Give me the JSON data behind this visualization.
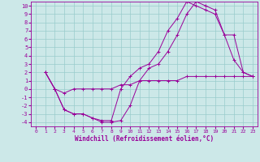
{
  "xlabel": "Windchill (Refroidissement éolien,°C)",
  "bg_color": "#cce8e8",
  "line_color": "#990099",
  "grid_color": "#99cccc",
  "xlim": [
    -0.5,
    23.5
  ],
  "ylim": [
    -4.5,
    10.5
  ],
  "xticks": [
    0,
    1,
    2,
    3,
    4,
    5,
    6,
    7,
    8,
    9,
    10,
    11,
    12,
    13,
    14,
    15,
    16,
    17,
    18,
    19,
    20,
    21,
    22,
    23
  ],
  "yticks": [
    -4,
    -3,
    -2,
    -1,
    0,
    1,
    2,
    3,
    4,
    5,
    6,
    7,
    8,
    9,
    10
  ],
  "curve1_x": [
    1,
    2,
    3,
    4,
    5,
    6,
    7,
    8,
    9,
    10,
    11,
    12,
    13,
    14,
    15,
    16,
    17,
    18,
    19,
    20,
    21,
    22,
    23
  ],
  "curve1_y": [
    2,
    0,
    -2.5,
    -3,
    -3,
    -3.5,
    -4,
    -4,
    -3.8,
    -2,
    1,
    2.5,
    3,
    4.5,
    6.5,
    9,
    10.5,
    10,
    9.5,
    6.5,
    3.5,
    2,
    1.5
  ],
  "curve2_x": [
    1,
    2,
    3,
    4,
    5,
    6,
    7,
    8,
    9,
    10,
    11,
    12,
    13,
    14,
    15,
    16,
    17,
    18,
    19,
    20,
    21,
    22,
    23
  ],
  "curve2_y": [
    2,
    0,
    -2.5,
    -3,
    -3,
    -3.5,
    -3.8,
    -3.8,
    0,
    1.5,
    2.5,
    3,
    4.5,
    7,
    8.5,
    10.5,
    10,
    9.5,
    9,
    6.5,
    6.5,
    2,
    1.5
  ],
  "curve3_x": [
    1,
    2,
    3,
    4,
    5,
    6,
    7,
    8,
    9,
    10,
    11,
    12,
    13,
    14,
    15,
    16,
    17,
    18,
    19,
    20,
    21,
    22,
    23
  ],
  "curve3_y": [
    2,
    0,
    -0.5,
    0,
    0,
    0,
    0,
    0,
    0.5,
    0.5,
    1,
    1,
    1,
    1,
    1,
    1.5,
    1.5,
    1.5,
    1.5,
    1.5,
    1.5,
    1.5,
    1.5
  ]
}
